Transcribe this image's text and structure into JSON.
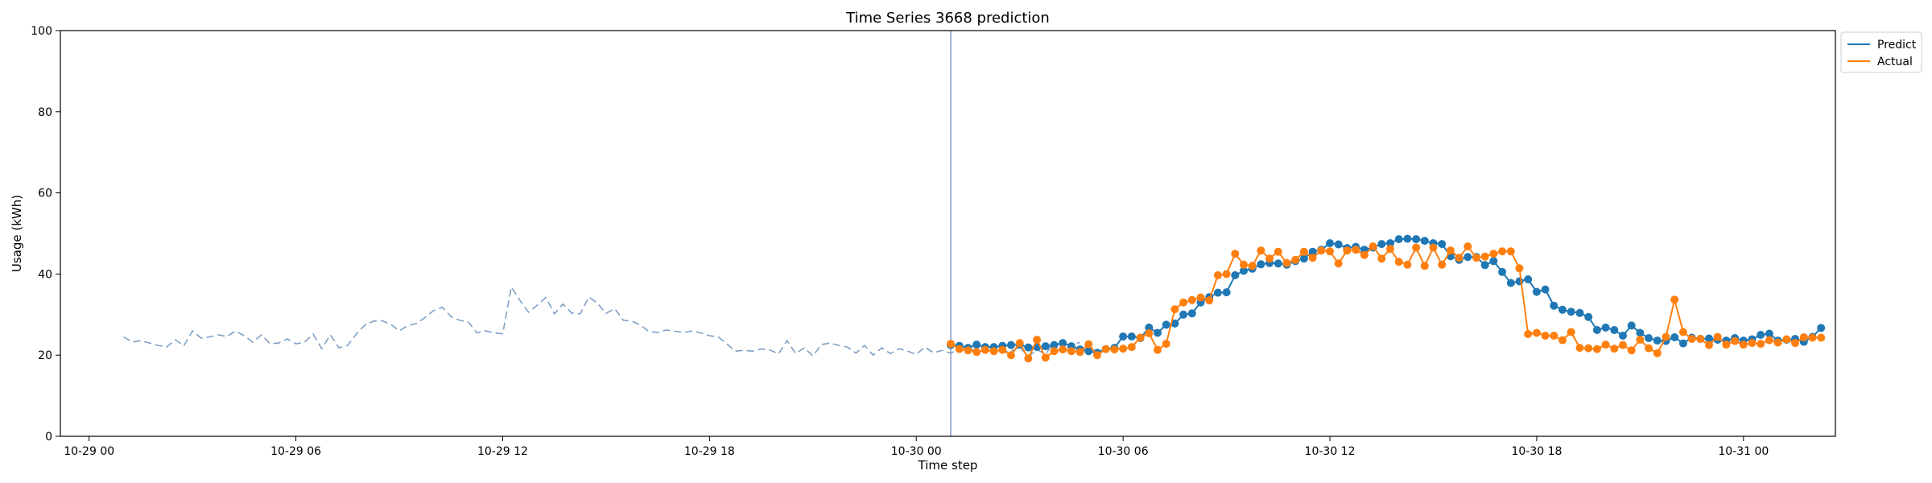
{
  "chart_data": {
    "type": "line",
    "title": "Time Series 3668 prediction",
    "xlabel": "Time step",
    "ylabel": "Usage (kWh)",
    "ylim": [
      0,
      100
    ],
    "xlim": [
      "2023-10-28T23:10",
      "2023-10-31T02:40"
    ],
    "yticks": [
      0,
      20,
      40,
      60,
      80,
      100
    ],
    "xticks": [
      {
        "t": "2023-10-29T00:00",
        "label": "10-29 00"
      },
      {
        "t": "2023-10-29T06:00",
        "label": "10-29 06"
      },
      {
        "t": "2023-10-29T12:00",
        "label": "10-29 12"
      },
      {
        "t": "2023-10-29T18:00",
        "label": "10-29 18"
      },
      {
        "t": "2023-10-30T00:00",
        "label": "10-30 00"
      },
      {
        "t": "2023-10-30T06:00",
        "label": "10-30 06"
      },
      {
        "t": "2023-10-30T12:00",
        "label": "10-30 12"
      },
      {
        "t": "2023-10-30T18:00",
        "label": "10-30 18"
      },
      {
        "t": "2023-10-31T00:00",
        "label": "10-31 00"
      }
    ],
    "grid": false,
    "legend_position": "outside top-right",
    "forecast_start": "2023-10-30T01:00",
    "step_minutes": 15,
    "history": {
      "start": "2023-10-29T01:00",
      "color": "#7f9fc4",
      "style": "dashed",
      "values": [
        24.5,
        23.2,
        23.6,
        23.0,
        22.4,
        22.0,
        23.8,
        22.3,
        26.0,
        24.2,
        24.5,
        25.0,
        24.6,
        26.0,
        24.8,
        23.2,
        25.0,
        22.8,
        23.0,
        24.0,
        22.8,
        23.2,
        25.2,
        21.6,
        25.0,
        21.8,
        22.4,
        25.2,
        27.4,
        28.4,
        28.5,
        27.6,
        26.0,
        27.3,
        27.8,
        29.3,
        31.0,
        31.8,
        29.5,
        28.6,
        28.2,
        25.5,
        26.0,
        25.5,
        25.3,
        36.8,
        33.5,
        30.6,
        32.3,
        34.2,
        30.2,
        32.6,
        30.4,
        30.2,
        34.3,
        32.8,
        30.3,
        31.5,
        28.6,
        28.4,
        27.4,
        25.8,
        25.6,
        26.2,
        25.9,
        25.6,
        26.0,
        25.5,
        24.8,
        24.5,
        22.8,
        21.0,
        21.2,
        21.0,
        21.5,
        21.3,
        20.3,
        23.6,
        20.4,
        21.8,
        19.8,
        22.6,
        23.0,
        22.4,
        22.0,
        20.5,
        22.4,
        20.0,
        21.8,
        20.4,
        21.6,
        21.0,
        20.2,
        22.0,
        20.6,
        21.2,
        20.5,
        21.5,
        21.2,
        21.4,
        20.6,
        21.6,
        21.0,
        21.0,
        22.0,
        19.6,
        21.4,
        20.2,
        23.3,
        20.6,
        22.7,
        23.1
      ]
    },
    "series": [
      {
        "name": "Predict",
        "color": "#1f77b4",
        "start": "2023-10-30T01:00",
        "values": [
          22.5,
          22.3,
          21.8,
          22.6,
          22.0,
          22.0,
          22.3,
          22.5,
          22.6,
          21.9,
          22.0,
          22.2,
          22.5,
          23.0,
          22.2,
          21.4,
          21.0,
          20.6,
          21.5,
          21.8,
          24.6,
          24.6,
          24.2,
          26.8,
          25.5,
          27.5,
          27.8,
          30.0,
          30.3,
          33.0,
          34.3,
          35.4,
          35.5,
          39.7,
          40.8,
          41.3,
          42.4,
          42.7,
          42.6,
          42.3,
          43.2,
          43.8,
          45.5,
          46.0,
          47.6,
          47.3,
          46.4,
          46.7,
          46.0,
          46.5,
          47.4,
          47.6,
          48.6,
          48.7,
          48.6,
          48.2,
          47.6,
          47.4,
          44.4,
          43.5,
          44.2,
          44.2,
          42.2,
          43.2,
          40.5,
          37.8,
          38.2,
          38.7,
          35.6,
          36.2,
          32.2,
          31.2,
          30.7,
          30.4,
          29.4,
          26.2,
          26.8,
          26.2,
          24.8,
          27.3,
          25.5,
          24.2,
          23.6,
          23.5,
          24.4,
          22.9,
          24.3,
          24.0,
          24.1,
          23.8,
          23.6,
          24.2,
          23.6,
          23.9,
          25.0,
          25.3,
          23.6,
          23.8,
          24.0,
          23.3,
          24.5,
          26.7
        ]
      },
      {
        "name": "Actual",
        "color": "#ff7f0e",
        "start": "2023-10-30T01:00",
        "values": [
          22.8,
          21.5,
          21.2,
          20.8,
          21.3,
          21.0,
          21.3,
          20.0,
          23.0,
          19.2,
          23.8,
          19.4,
          21.0,
          21.4,
          21.0,
          20.8,
          22.7,
          20.0,
          21.5,
          21.4,
          21.6,
          22.0,
          24.3,
          25.4,
          21.3,
          22.8,
          31.3,
          33.0,
          33.6,
          34.2,
          33.5,
          39.7,
          40.0,
          45.0,
          42.3,
          42.0,
          45.8,
          43.8,
          45.5,
          42.7,
          43.5,
          45.5,
          44.0,
          45.8,
          45.6,
          42.6,
          45.8,
          46.0,
          44.7,
          46.8,
          43.8,
          46.2,
          43.0,
          42.3,
          46.5,
          42.0,
          46.5,
          42.3,
          45.8,
          44.0,
          46.8,
          44.0,
          44.3,
          45.0,
          45.6,
          45.6,
          41.4,
          25.2,
          25.5,
          24.8,
          24.8,
          23.7,
          25.7,
          21.8,
          21.7,
          21.5,
          22.6,
          21.6,
          22.5,
          21.2,
          23.8,
          21.7,
          20.5,
          24.5,
          33.7,
          25.7,
          24.0,
          24.0,
          22.5,
          24.5,
          22.6,
          23.5,
          22.6,
          23.0,
          22.8,
          23.7,
          23.1,
          23.9,
          23.0,
          24.4,
          24.3,
          24.3
        ]
      }
    ]
  }
}
